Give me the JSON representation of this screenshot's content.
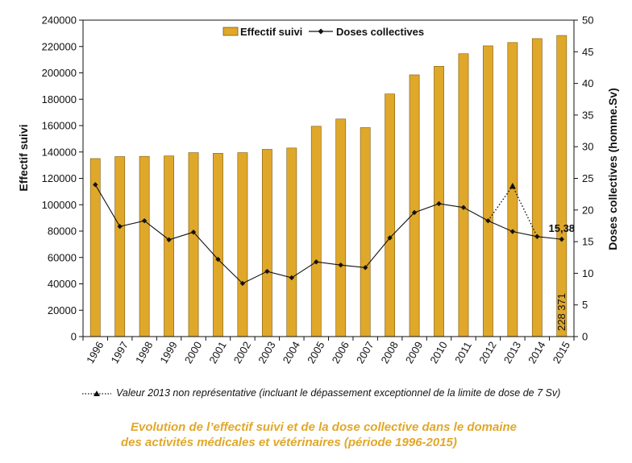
{
  "chart_data": {
    "type": "bar",
    "categories": [
      "1996",
      "1997",
      "1998",
      "1999",
      "2000",
      "2001",
      "2002",
      "2003",
      "2004",
      "2005",
      "2006",
      "2007",
      "2008",
      "2009",
      "2010",
      "2011",
      "2012",
      "2013",
      "2014",
      "2015"
    ],
    "series": [
      {
        "name": "Effectif suivi",
        "type": "bar",
        "axis": "left",
        "color": "#e0a82a",
        "values": [
          135000,
          136500,
          136700,
          137000,
          139500,
          139000,
          139500,
          142000,
          143000,
          159500,
          165000,
          158500,
          184000,
          198500,
          205000,
          214500,
          220500,
          223000,
          226000,
          228371
        ]
      },
      {
        "name": "Doses collectives",
        "type": "line",
        "axis": "right",
        "color": "#111111",
        "values": [
          24.0,
          17.4,
          18.3,
          15.3,
          16.5,
          12.2,
          8.4,
          10.3,
          9.3,
          11.8,
          11.3,
          10.9,
          15.6,
          19.6,
          21.0,
          20.4,
          18.3,
          16.6,
          15.8,
          15.38
        ]
      },
      {
        "name": "Valeur 2013 non représentative",
        "type": "dotted-line",
        "axis": "right",
        "color": "#111111",
        "x": [
          "2012",
          "2013",
          "2014"
        ],
        "values": [
          18.3,
          23.8,
          15.8
        ]
      }
    ],
    "ylabel": "Effectif suivi",
    "y2label": "Doses collectives (homme.Sv)",
    "ylim": [
      0,
      240000
    ],
    "y2lim": [
      0,
      50
    ],
    "yticks": [
      "0",
      "20000",
      "40000",
      "60000",
      "80000",
      "100000",
      "120000",
      "140000",
      "160000",
      "180000",
      "200000",
      "220000",
      "240000"
    ],
    "y2ticks": [
      "0",
      "5",
      "10",
      "15",
      "20",
      "25",
      "30",
      "35",
      "40",
      "45",
      "50"
    ],
    "data_labels": {
      "last_bar": "228 371",
      "last_point": "15,38"
    },
    "legend_position": "top"
  },
  "note": {
    "text": "Valeur 2013 non représentative (incluant le dépassement exceptionnel de la limite de dose de 7 Sv)"
  },
  "caption": {
    "line1": "Evolution de l’effectif suivi et de la dose collective dans le domaine",
    "line2": "des activités médicales et vétérinaires (période 1996-2015)"
  }
}
